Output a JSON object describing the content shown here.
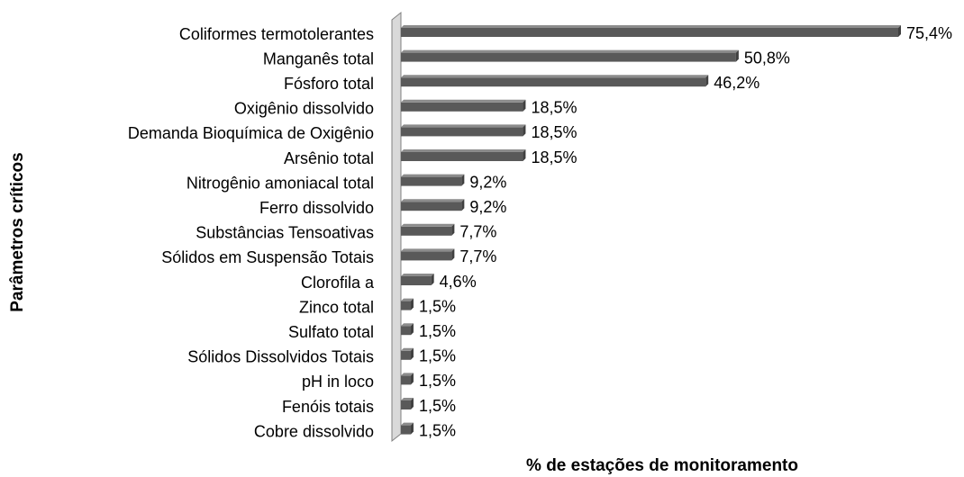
{
  "chart_data": {
    "type": "bar",
    "orientation": "horizontal",
    "x_axis_label": "% de estações de monitoramento",
    "y_axis_label": "Parâmetros críticos",
    "categories": [
      "Coliformes termotolerantes",
      "Manganês total",
      "Fósforo total",
      "Oxigênio dissolvido",
      "Demanda Bioquímica de Oxigênio",
      "Arsênio total",
      "Nitrogênio amoniacal total",
      "Ferro dissolvido",
      "Substâncias Tensoativas",
      "Sólidos em Suspensão Totais",
      "Clorofila a",
      "Zinco total",
      "Sulfato total",
      "Sólidos Dissolvidos Totais",
      "pH in loco",
      "Fenóis totais",
      "Cobre dissolvido"
    ],
    "values": [
      75.4,
      50.8,
      46.2,
      18.5,
      18.5,
      18.5,
      9.2,
      9.2,
      7.7,
      7.7,
      4.6,
      1.5,
      1.5,
      1.5,
      1.5,
      1.5,
      1.5
    ],
    "value_labels": [
      "75,4%",
      "50,8%",
      "46,2%",
      "18,5%",
      "18,5%",
      "18,5%",
      "9,2%",
      "9,2%",
      "7,7%",
      "7,7%",
      "4,6%",
      "1,5%",
      "1,5%",
      "1,5%",
      "1,5%",
      "1,5%",
      "1,5%"
    ],
    "color": "#595959"
  }
}
